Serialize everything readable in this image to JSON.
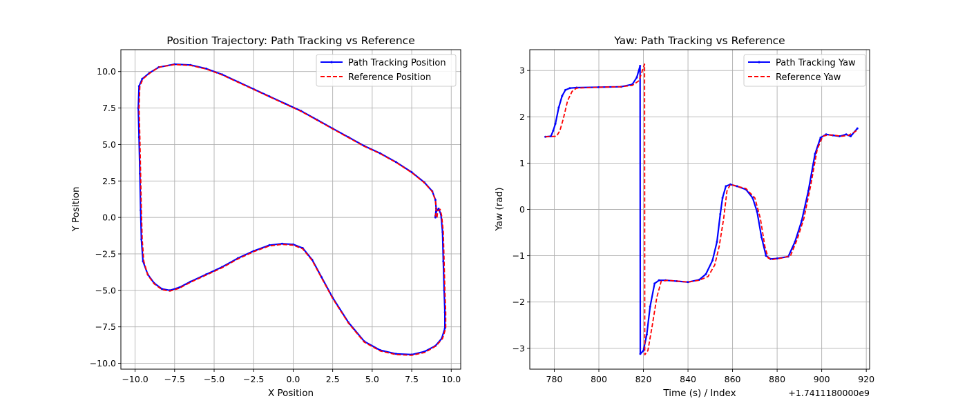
{
  "chart_data": [
    {
      "type": "line",
      "title": "Position Trajectory: Path Tracking vs Reference",
      "xlabel": "X Position",
      "ylabel": "Y Position",
      "xlim": [
        -10.9,
        10.6
      ],
      "ylim": [
        -10.4,
        11.5
      ],
      "xticks": [
        -10.0,
        -7.5,
        -5.0,
        -2.5,
        0.0,
        2.5,
        5.0,
        7.5,
        10.0
      ],
      "xtick_labels": [
        "−10.0",
        "−7.5",
        "−5.0",
        "−2.5",
        "0.0",
        "2.5",
        "5.0",
        "7.5",
        "10.0"
      ],
      "yticks": [
        -10.0,
        -7.5,
        -5.0,
        -2.5,
        0.0,
        2.5,
        5.0,
        7.5,
        10.0
      ],
      "ytick_labels": [
        "−10.0",
        "−7.5",
        "−5.0",
        "−2.5",
        "0.0",
        "2.5",
        "5.0",
        "7.5",
        "10.0"
      ],
      "grid": true,
      "legend_position": "top-right",
      "series": [
        {
          "name": "Path Tracking Position",
          "color": "#0000ff",
          "style": "solid-with-markers",
          "points": [
            [
              9.0,
              0.0
            ],
            [
              9.05,
              0.4
            ],
            [
              9.2,
              0.6
            ],
            [
              9.35,
              0.2
            ],
            [
              9.45,
              -1.0
            ],
            [
              9.5,
              -3.0
            ],
            [
              9.55,
              -5.0
            ],
            [
              9.6,
              -6.5
            ],
            [
              9.6,
              -7.6
            ],
            [
              9.4,
              -8.3
            ],
            [
              9.0,
              -8.8
            ],
            [
              8.3,
              -9.2
            ],
            [
              7.5,
              -9.4
            ],
            [
              6.5,
              -9.35
            ],
            [
              5.5,
              -9.1
            ],
            [
              4.5,
              -8.5
            ],
            [
              3.5,
              -7.2
            ],
            [
              2.5,
              -5.5
            ],
            [
              1.8,
              -4.1
            ],
            [
              1.2,
              -2.9
            ],
            [
              0.6,
              -2.1
            ],
            [
              0.0,
              -1.85
            ],
            [
              -0.7,
              -1.8
            ],
            [
              -1.5,
              -1.9
            ],
            [
              -2.5,
              -2.3
            ],
            [
              -3.5,
              -2.8
            ],
            [
              -4.5,
              -3.4
            ],
            [
              -5.5,
              -3.9
            ],
            [
              -6.5,
              -4.4
            ],
            [
              -7.2,
              -4.8
            ],
            [
              -7.8,
              -5.0
            ],
            [
              -8.3,
              -4.9
            ],
            [
              -8.8,
              -4.5
            ],
            [
              -9.2,
              -3.9
            ],
            [
              -9.5,
              -3.0
            ],
            [
              -9.6,
              -1.5
            ],
            [
              -9.65,
              0.5
            ],
            [
              -9.7,
              3.0
            ],
            [
              -9.75,
              5.5
            ],
            [
              -9.8,
              7.5
            ],
            [
              -9.75,
              9.0
            ],
            [
              -9.55,
              9.5
            ],
            [
              -9.1,
              9.9
            ],
            [
              -8.5,
              10.3
            ],
            [
              -7.5,
              10.5
            ],
            [
              -6.5,
              10.45
            ],
            [
              -5.5,
              10.2
            ],
            [
              -4.5,
              9.8
            ],
            [
              -3.5,
              9.3
            ],
            [
              -2.5,
              8.8
            ],
            [
              -1.5,
              8.3
            ],
            [
              -0.5,
              7.8
            ],
            [
              0.5,
              7.3
            ],
            [
              1.5,
              6.7
            ],
            [
              2.5,
              6.1
            ],
            [
              3.5,
              5.5
            ],
            [
              4.5,
              4.9
            ],
            [
              5.5,
              4.4
            ],
            [
              6.5,
              3.8
            ],
            [
              7.5,
              3.1
            ],
            [
              8.3,
              2.4
            ],
            [
              8.8,
              1.8
            ],
            [
              9.0,
              1.2
            ],
            [
              9.05,
              0.6
            ],
            [
              9.0,
              0.1
            ]
          ]
        },
        {
          "name": "Reference Position",
          "color": "#ff0000",
          "style": "dashed",
          "points": [
            [
              9.1,
              0.0
            ],
            [
              9.15,
              0.45
            ],
            [
              9.3,
              0.55
            ],
            [
              9.4,
              0.1
            ],
            [
              9.5,
              -1.0
            ],
            [
              9.55,
              -3.0
            ],
            [
              9.6,
              -5.0
            ],
            [
              9.65,
              -6.5
            ],
            [
              9.65,
              -7.6
            ],
            [
              9.45,
              -8.3
            ],
            [
              9.05,
              -8.8
            ],
            [
              8.35,
              -9.25
            ],
            [
              7.5,
              -9.45
            ],
            [
              6.5,
              -9.4
            ],
            [
              5.5,
              -9.15
            ],
            [
              4.5,
              -8.55
            ],
            [
              3.5,
              -7.25
            ],
            [
              2.5,
              -5.55
            ],
            [
              1.8,
              -4.15
            ],
            [
              1.2,
              -2.95
            ],
            [
              0.6,
              -2.15
            ],
            [
              0.0,
              -1.9
            ],
            [
              -0.7,
              -1.85
            ],
            [
              -1.5,
              -1.95
            ],
            [
              -2.5,
              -2.35
            ],
            [
              -3.5,
              -2.85
            ],
            [
              -4.5,
              -3.45
            ],
            [
              -5.5,
              -3.95
            ],
            [
              -6.5,
              -4.45
            ],
            [
              -7.2,
              -4.85
            ],
            [
              -7.8,
              -5.05
            ],
            [
              -8.3,
              -4.95
            ],
            [
              -8.8,
              -4.55
            ],
            [
              -9.2,
              -3.95
            ],
            [
              -9.45,
              -3.0
            ],
            [
              -9.55,
              -1.5
            ],
            [
              -9.6,
              0.5
            ],
            [
              -9.65,
              3.0
            ],
            [
              -9.7,
              5.5
            ],
            [
              -9.75,
              7.5
            ],
            [
              -9.7,
              9.0
            ],
            [
              -9.5,
              9.5
            ],
            [
              -9.05,
              9.9
            ],
            [
              -8.5,
              10.3
            ],
            [
              -7.5,
              10.48
            ],
            [
              -6.5,
              10.42
            ],
            [
              -5.5,
              10.17
            ],
            [
              -4.5,
              9.77
            ],
            [
              -3.5,
              9.27
            ],
            [
              -2.5,
              8.77
            ],
            [
              -1.5,
              8.27
            ],
            [
              -0.5,
              7.77
            ],
            [
              0.5,
              7.27
            ],
            [
              1.5,
              6.67
            ],
            [
              2.5,
              6.07
            ],
            [
              3.5,
              5.47
            ],
            [
              4.5,
              4.87
            ],
            [
              5.5,
              4.37
            ],
            [
              6.5,
              3.77
            ],
            [
              7.5,
              3.07
            ],
            [
              8.3,
              2.37
            ],
            [
              8.8,
              1.77
            ],
            [
              9.0,
              1.17
            ],
            [
              9.05,
              0.57
            ],
            [
              9.0,
              0.07
            ]
          ]
        }
      ]
    },
    {
      "type": "line",
      "title": "Yaw: Path Tracking vs Reference",
      "xlabel": "Time (s) / Index",
      "ylabel": "Yaw (rad)",
      "x_offset_label": "+1.7411180000e9",
      "xlim": [
        769,
        921.5
      ],
      "ylim": [
        -3.45,
        3.45
      ],
      "xticks": [
        780,
        800,
        820,
        840,
        860,
        880,
        900,
        920
      ],
      "xtick_labels": [
        "780",
        "800",
        "820",
        "840",
        "860",
        "880",
        "900",
        "920"
      ],
      "yticks": [
        -3,
        -2,
        -1,
        0,
        1,
        2,
        3
      ],
      "ytick_labels": [
        "−3",
        "−2",
        "−1",
        "0",
        "1",
        "2",
        "3"
      ],
      "grid": true,
      "legend_position": "top-right",
      "series": [
        {
          "name": "Path Tracking Yaw",
          "color": "#0000ff",
          "style": "solid-with-markers",
          "points": [
            [
              776,
              1.57
            ],
            [
              778.5,
              1.58
            ],
            [
              779.5,
              1.7
            ],
            [
              780.5,
              1.85
            ],
            [
              782,
              2.2
            ],
            [
              783.5,
              2.45
            ],
            [
              785,
              2.58
            ],
            [
              787,
              2.62
            ],
            [
              790,
              2.63
            ],
            [
              800,
              2.64
            ],
            [
              810,
              2.65
            ],
            [
              815,
              2.7
            ],
            [
              817,
              2.85
            ],
            [
              818.5,
              3.1
            ],
            [
              818.6,
              -3.12
            ],
            [
              820,
              -3.05
            ],
            [
              821.5,
              -2.7
            ],
            [
              823,
              -2.1
            ],
            [
              825,
              -1.6
            ],
            [
              827,
              -1.53
            ],
            [
              830,
              -1.53
            ],
            [
              835,
              -1.55
            ],
            [
              840,
              -1.57
            ],
            [
              845,
              -1.52
            ],
            [
              848,
              -1.4
            ],
            [
              851,
              -1.1
            ],
            [
              853,
              -0.7
            ],
            [
              854.5,
              -0.1
            ],
            [
              855.5,
              0.25
            ],
            [
              857,
              0.5
            ],
            [
              859,
              0.54
            ],
            [
              862,
              0.5
            ],
            [
              866,
              0.43
            ],
            [
              869,
              0.25
            ],
            [
              871,
              -0.05
            ],
            [
              873,
              -0.6
            ],
            [
              875,
              -1.0
            ],
            [
              877,
              -1.07
            ],
            [
              880,
              -1.06
            ],
            [
              885,
              -1.02
            ],
            [
              888,
              -0.7
            ],
            [
              891,
              -0.25
            ],
            [
              894,
              0.4
            ],
            [
              897,
              1.2
            ],
            [
              899.5,
              1.55
            ],
            [
              902,
              1.62
            ],
            [
              905,
              1.6
            ],
            [
              908,
              1.58
            ],
            [
              911,
              1.62
            ],
            [
              913,
              1.58
            ],
            [
              916,
              1.75
            ]
          ]
        },
        {
          "name": "Reference Yaw",
          "color": "#ff0000",
          "style": "dashed",
          "points": [
            [
              776,
              1.57
            ],
            [
              781,
              1.58
            ],
            [
              782.5,
              1.7
            ],
            [
              784,
              1.95
            ],
            [
              786,
              2.35
            ],
            [
              788,
              2.55
            ],
            [
              790,
              2.62
            ],
            [
              800,
              2.64
            ],
            [
              810,
              2.65
            ],
            [
              815,
              2.68
            ],
            [
              818,
              2.78
            ],
            [
              820.5,
              3.14
            ],
            [
              820.6,
              -3.14
            ],
            [
              822,
              -3.05
            ],
            [
              824,
              -2.5
            ],
            [
              826,
              -1.9
            ],
            [
              828,
              -1.55
            ],
            [
              831,
              -1.53
            ],
            [
              840,
              -1.57
            ],
            [
              845,
              -1.53
            ],
            [
              849,
              -1.45
            ],
            [
              852,
              -1.2
            ],
            [
              854,
              -0.8
            ],
            [
              856,
              -0.2
            ],
            [
              857.5,
              0.4
            ],
            [
              859,
              0.54
            ],
            [
              862,
              0.5
            ],
            [
              866,
              0.45
            ],
            [
              870,
              0.25
            ],
            [
              872.5,
              -0.2
            ],
            [
              874.5,
              -0.8
            ],
            [
              876,
              -1.05
            ],
            [
              878,
              -1.08
            ],
            [
              882,
              -1.05
            ],
            [
              886,
              -1.0
            ],
            [
              889,
              -0.65
            ],
            [
              892,
              -0.2
            ],
            [
              895,
              0.5
            ],
            [
              898,
              1.3
            ],
            [
              900.5,
              1.58
            ],
            [
              903,
              1.61
            ],
            [
              906,
              1.6
            ],
            [
              909,
              1.58
            ],
            [
              912,
              1.6
            ],
            [
              915,
              1.68
            ],
            [
              916,
              1.72
            ]
          ]
        }
      ]
    }
  ]
}
